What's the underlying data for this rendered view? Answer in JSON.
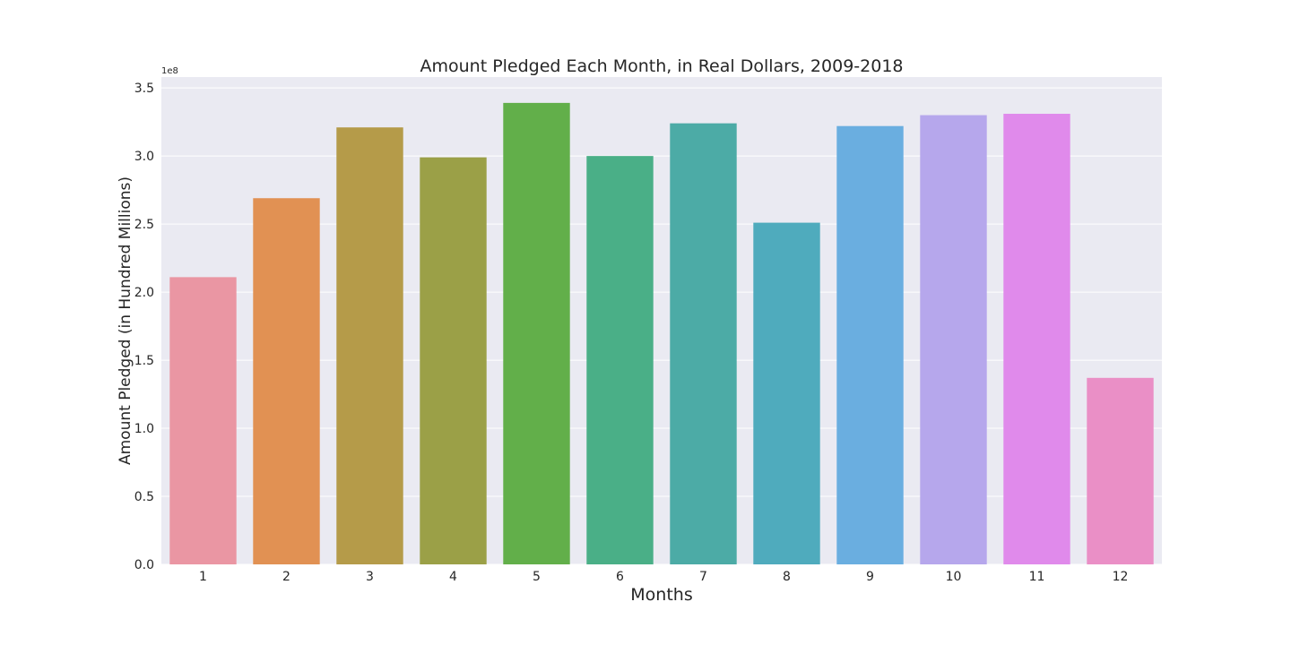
{
  "chart_data": {
    "type": "bar",
    "title": "Amount Pledged Each Month, in Real Dollars, 2009-2018",
    "xlabel": "Months",
    "ylabel": "Amount Pledged (in Hundred Millions)",
    "y_offset_label": "1e8",
    "categories": [
      "1",
      "2",
      "3",
      "4",
      "5",
      "6",
      "7",
      "8",
      "9",
      "10",
      "11",
      "12"
    ],
    "values": [
      211000000,
      269000000,
      321000000,
      299000000,
      339000000,
      300000000,
      324000000,
      251000000,
      322000000,
      330000000,
      331000000,
      137000000
    ],
    "ylim": [
      0,
      350000000
    ],
    "yticks": [
      0,
      50000000,
      100000000,
      150000000,
      200000000,
      250000000,
      300000000,
      350000000
    ],
    "ytick_labels": [
      "0.0",
      "0.5",
      "1.0",
      "1.5",
      "2.0",
      "2.5",
      "3.0",
      "3.5"
    ],
    "grid": true,
    "legend": "none",
    "colors": [
      "#ea96a3",
      "#e19153",
      "#b59b49",
      "#9ba047",
      "#62af4a",
      "#4aaf87",
      "#4caba6",
      "#4fabbd",
      "#6aaee0",
      "#b6a7ec",
      "#e08aeb",
      "#ea8fc6"
    ],
    "background": "#eaeaf2",
    "grid_color": "#ffffff",
    "text_color": "#262626"
  }
}
